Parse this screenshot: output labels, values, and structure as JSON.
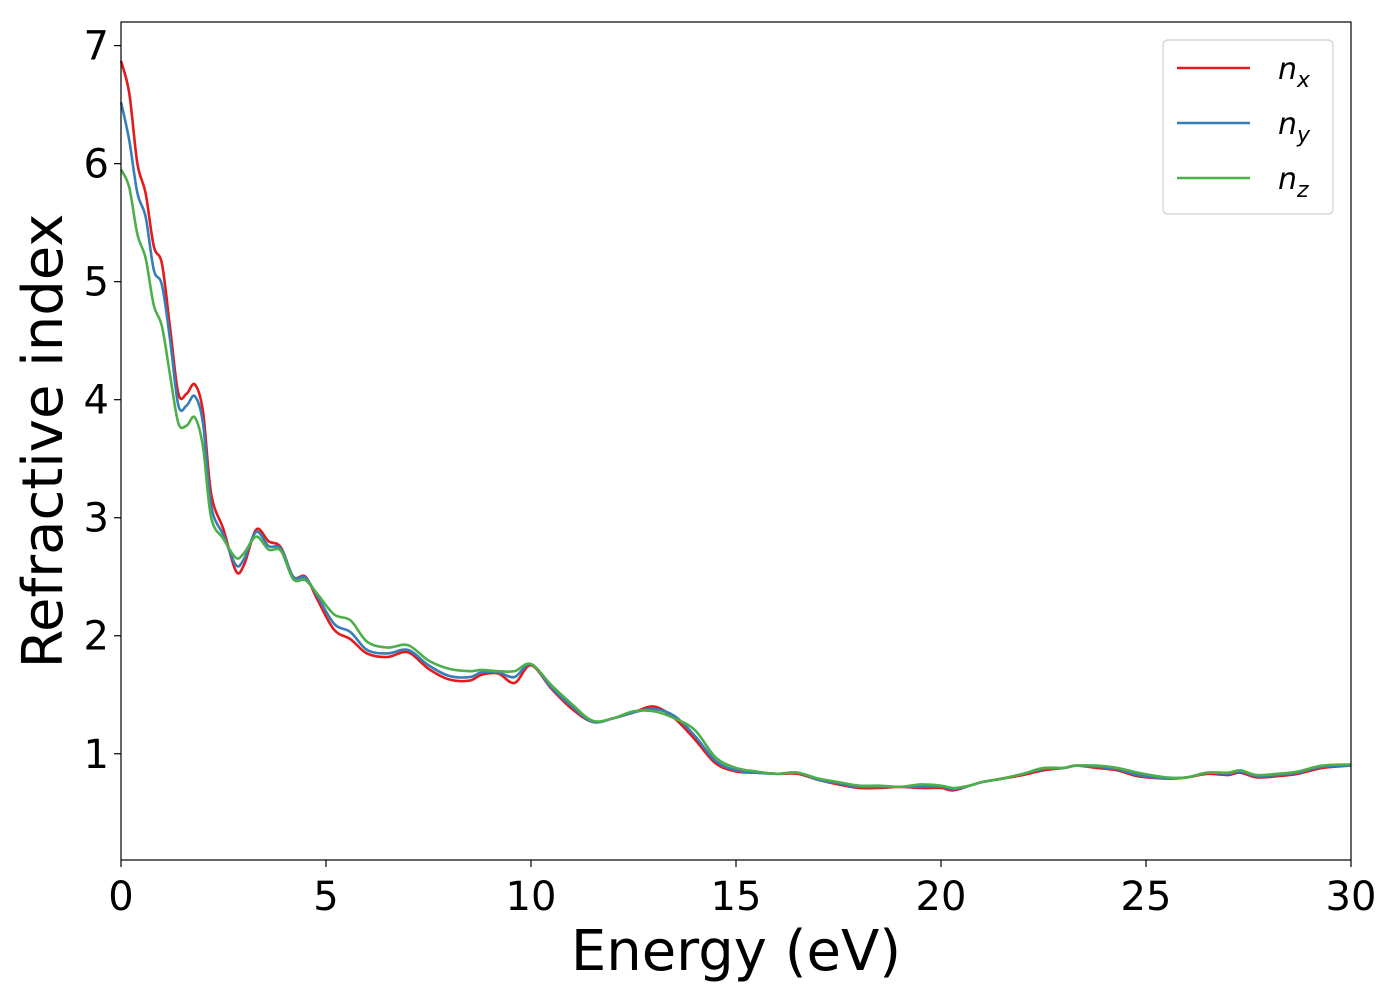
{
  "chart_data": {
    "type": "line",
    "title": "",
    "xlabel": "Energy (eV)",
    "ylabel": "Refractive index",
    "xlim": [
      0,
      30
    ],
    "ylim": [
      0.1,
      7.2
    ],
    "xticks": [
      "0",
      "5",
      "10",
      "15",
      "20",
      "25",
      "30"
    ],
    "xtick_values": [
      0,
      5,
      10,
      15,
      20,
      25,
      30
    ],
    "yticks": [
      "1",
      "2",
      "3",
      "4",
      "5",
      "6",
      "7"
    ],
    "ytick_values": [
      1,
      2,
      3,
      4,
      5,
      6,
      7
    ],
    "grid": false,
    "legend_position": "top-right",
    "series": [
      {
        "name": "n_x",
        "label_main": "n",
        "label_sub": "x",
        "color": "#e41a1c",
        "points": [
          [
            0,
            6.87
          ],
          [
            0.2,
            6.6
          ],
          [
            0.4,
            6.0
          ],
          [
            0.6,
            5.75
          ],
          [
            0.8,
            5.3
          ],
          [
            1.0,
            5.15
          ],
          [
            1.2,
            4.6
          ],
          [
            1.4,
            4.05
          ],
          [
            1.6,
            4.05
          ],
          [
            1.8,
            4.13
          ],
          [
            2.0,
            3.9
          ],
          [
            2.2,
            3.2
          ],
          [
            2.5,
            2.9
          ],
          [
            2.8,
            2.55
          ],
          [
            3.0,
            2.6
          ],
          [
            3.3,
            2.9
          ],
          [
            3.6,
            2.8
          ],
          [
            3.9,
            2.75
          ],
          [
            4.2,
            2.5
          ],
          [
            4.5,
            2.5
          ],
          [
            4.8,
            2.3
          ],
          [
            5.2,
            2.05
          ],
          [
            5.6,
            1.97
          ],
          [
            6.0,
            1.85
          ],
          [
            6.5,
            1.82
          ],
          [
            7.0,
            1.86
          ],
          [
            7.5,
            1.72
          ],
          [
            8.0,
            1.63
          ],
          [
            8.5,
            1.62
          ],
          [
            8.8,
            1.67
          ],
          [
            9.2,
            1.68
          ],
          [
            9.6,
            1.6
          ],
          [
            10.0,
            1.75
          ],
          [
            10.5,
            1.55
          ],
          [
            11.0,
            1.38
          ],
          [
            11.5,
            1.27
          ],
          [
            12.0,
            1.3
          ],
          [
            12.5,
            1.35
          ],
          [
            13.0,
            1.4
          ],
          [
            13.5,
            1.3
          ],
          [
            14.0,
            1.12
          ],
          [
            14.5,
            0.92
          ],
          [
            15.0,
            0.85
          ],
          [
            15.5,
            0.84
          ],
          [
            16.0,
            0.83
          ],
          [
            16.5,
            0.83
          ],
          [
            17.0,
            0.78
          ],
          [
            17.5,
            0.74
          ],
          [
            18.0,
            0.71
          ],
          [
            18.5,
            0.71
          ],
          [
            19.0,
            0.72
          ],
          [
            19.5,
            0.71
          ],
          [
            20.0,
            0.71
          ],
          [
            20.3,
            0.69
          ],
          [
            20.7,
            0.73
          ],
          [
            21.0,
            0.76
          ],
          [
            21.5,
            0.79
          ],
          [
            22.0,
            0.82
          ],
          [
            22.5,
            0.86
          ],
          [
            23.0,
            0.88
          ],
          [
            23.3,
            0.9
          ],
          [
            23.8,
            0.88
          ],
          [
            24.3,
            0.86
          ],
          [
            24.8,
            0.81
          ],
          [
            25.5,
            0.79
          ],
          [
            26.0,
            0.8
          ],
          [
            26.5,
            0.83
          ],
          [
            27.0,
            0.82
          ],
          [
            27.3,
            0.84
          ],
          [
            27.7,
            0.8
          ],
          [
            28.2,
            0.81
          ],
          [
            28.7,
            0.83
          ],
          [
            29.3,
            0.88
          ],
          [
            30.0,
            0.9
          ]
        ]
      },
      {
        "name": "n_y",
        "label_main": "n",
        "label_sub": "y",
        "color": "#377eb8",
        "points": [
          [
            0,
            6.52
          ],
          [
            0.2,
            6.2
          ],
          [
            0.4,
            5.75
          ],
          [
            0.6,
            5.55
          ],
          [
            0.8,
            5.1
          ],
          [
            1.0,
            4.97
          ],
          [
            1.2,
            4.5
          ],
          [
            1.4,
            3.95
          ],
          [
            1.6,
            3.95
          ],
          [
            1.8,
            4.03
          ],
          [
            2.0,
            3.8
          ],
          [
            2.2,
            3.1
          ],
          [
            2.5,
            2.85
          ],
          [
            2.8,
            2.6
          ],
          [
            3.0,
            2.65
          ],
          [
            3.3,
            2.88
          ],
          [
            3.6,
            2.76
          ],
          [
            3.9,
            2.74
          ],
          [
            4.2,
            2.5
          ],
          [
            4.5,
            2.49
          ],
          [
            4.8,
            2.33
          ],
          [
            5.2,
            2.1
          ],
          [
            5.6,
            2.03
          ],
          [
            6.0,
            1.88
          ],
          [
            6.5,
            1.85
          ],
          [
            7.0,
            1.88
          ],
          [
            7.5,
            1.75
          ],
          [
            8.0,
            1.66
          ],
          [
            8.5,
            1.65
          ],
          [
            8.8,
            1.69
          ],
          [
            9.2,
            1.69
          ],
          [
            9.6,
            1.65
          ],
          [
            10.0,
            1.76
          ],
          [
            10.5,
            1.56
          ],
          [
            11.0,
            1.4
          ],
          [
            11.5,
            1.27
          ],
          [
            12.0,
            1.3
          ],
          [
            12.5,
            1.35
          ],
          [
            13.0,
            1.38
          ],
          [
            13.5,
            1.32
          ],
          [
            14.0,
            1.15
          ],
          [
            14.5,
            0.94
          ],
          [
            15.0,
            0.86
          ],
          [
            15.5,
            0.84
          ],
          [
            16.0,
            0.83
          ],
          [
            16.5,
            0.84
          ],
          [
            17.0,
            0.78
          ],
          [
            17.5,
            0.75
          ],
          [
            18.0,
            0.72
          ],
          [
            18.5,
            0.72
          ],
          [
            19.0,
            0.72
          ],
          [
            19.5,
            0.72
          ],
          [
            20.0,
            0.72
          ],
          [
            20.3,
            0.7
          ],
          [
            20.7,
            0.73
          ],
          [
            21.0,
            0.76
          ],
          [
            21.5,
            0.79
          ],
          [
            22.0,
            0.83
          ],
          [
            22.5,
            0.87
          ],
          [
            23.0,
            0.88
          ],
          [
            23.3,
            0.9
          ],
          [
            23.8,
            0.89
          ],
          [
            24.3,
            0.87
          ],
          [
            24.8,
            0.82
          ],
          [
            25.5,
            0.79
          ],
          [
            26.0,
            0.8
          ],
          [
            26.5,
            0.84
          ],
          [
            27.0,
            0.83
          ],
          [
            27.3,
            0.85
          ],
          [
            27.7,
            0.81
          ],
          [
            28.2,
            0.82
          ],
          [
            28.7,
            0.84
          ],
          [
            29.3,
            0.89
          ],
          [
            30.0,
            0.9
          ]
        ]
      },
      {
        "name": "n_z",
        "label_main": "n",
        "label_sub": "z",
        "color": "#4daf4a",
        "points": [
          [
            0,
            5.95
          ],
          [
            0.2,
            5.8
          ],
          [
            0.4,
            5.4
          ],
          [
            0.6,
            5.2
          ],
          [
            0.8,
            4.8
          ],
          [
            1.0,
            4.62
          ],
          [
            1.2,
            4.2
          ],
          [
            1.4,
            3.8
          ],
          [
            1.6,
            3.78
          ],
          [
            1.8,
            3.85
          ],
          [
            2.0,
            3.6
          ],
          [
            2.2,
            3.0
          ],
          [
            2.5,
            2.82
          ],
          [
            2.8,
            2.66
          ],
          [
            3.0,
            2.7
          ],
          [
            3.3,
            2.84
          ],
          [
            3.6,
            2.73
          ],
          [
            3.9,
            2.72
          ],
          [
            4.2,
            2.48
          ],
          [
            4.5,
            2.47
          ],
          [
            4.8,
            2.35
          ],
          [
            5.2,
            2.18
          ],
          [
            5.6,
            2.13
          ],
          [
            6.0,
            1.95
          ],
          [
            6.5,
            1.9
          ],
          [
            7.0,
            1.92
          ],
          [
            7.5,
            1.79
          ],
          [
            8.0,
            1.72
          ],
          [
            8.5,
            1.7
          ],
          [
            8.8,
            1.71
          ],
          [
            9.2,
            1.7
          ],
          [
            9.6,
            1.7
          ],
          [
            10.0,
            1.76
          ],
          [
            10.5,
            1.58
          ],
          [
            11.0,
            1.42
          ],
          [
            11.5,
            1.28
          ],
          [
            12.0,
            1.3
          ],
          [
            12.5,
            1.36
          ],
          [
            13.0,
            1.36
          ],
          [
            13.5,
            1.3
          ],
          [
            14.0,
            1.2
          ],
          [
            14.5,
            0.97
          ],
          [
            15.0,
            0.88
          ],
          [
            15.5,
            0.85
          ],
          [
            16.0,
            0.83
          ],
          [
            16.5,
            0.84
          ],
          [
            17.0,
            0.79
          ],
          [
            17.5,
            0.76
          ],
          [
            18.0,
            0.73
          ],
          [
            18.5,
            0.73
          ],
          [
            19.0,
            0.72
          ],
          [
            19.5,
            0.74
          ],
          [
            20.0,
            0.73
          ],
          [
            20.3,
            0.71
          ],
          [
            20.7,
            0.73
          ],
          [
            21.0,
            0.76
          ],
          [
            21.5,
            0.79
          ],
          [
            22.0,
            0.83
          ],
          [
            22.5,
            0.88
          ],
          [
            23.0,
            0.88
          ],
          [
            23.3,
            0.9
          ],
          [
            23.8,
            0.9
          ],
          [
            24.3,
            0.88
          ],
          [
            24.8,
            0.84
          ],
          [
            25.5,
            0.8
          ],
          [
            26.0,
            0.8
          ],
          [
            26.5,
            0.84
          ],
          [
            27.0,
            0.84
          ],
          [
            27.3,
            0.86
          ],
          [
            27.7,
            0.82
          ],
          [
            28.2,
            0.83
          ],
          [
            28.7,
            0.85
          ],
          [
            29.3,
            0.9
          ],
          [
            30.0,
            0.91
          ]
        ]
      }
    ]
  }
}
